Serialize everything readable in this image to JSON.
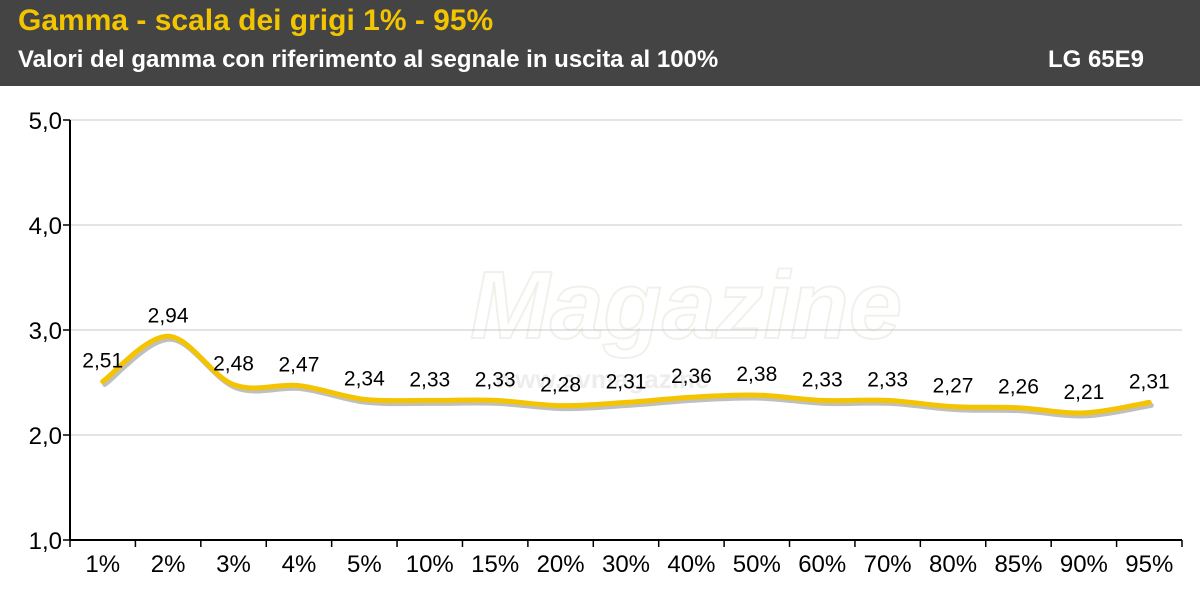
{
  "header": {
    "title": "Gamma - scala dei grigi 1% - 95%",
    "subtitle": "Valori del gamma con riferimento al segnale in uscita al 100%",
    "model": "LG 65E9"
  },
  "watermark": {
    "text": "Magazine",
    "url": "www.avmagazine"
  },
  "colors": {
    "header_bg": "#444444",
    "title": "#f2c500",
    "line": "#f5c400",
    "grid": "#c8c8c8"
  },
  "chart_data": {
    "type": "line",
    "categories": [
      "1%",
      "2%",
      "3%",
      "4%",
      "5%",
      "10%",
      "15%",
      "20%",
      "30%",
      "40%",
      "50%",
      "60%",
      "70%",
      "80%",
      "85%",
      "90%",
      "95%"
    ],
    "series": [
      {
        "values": [
          2.51,
          2.94,
          2.48,
          2.47,
          2.34,
          2.33,
          2.33,
          2.28,
          2.31,
          2.36,
          2.38,
          2.33,
          2.33,
          2.27,
          2.26,
          2.21,
          2.31
        ]
      }
    ],
    "data_labels": [
      "2,51",
      "2,94",
      "2,48",
      "2,47",
      "2,34",
      "2,33",
      "2,33",
      "2,28",
      "2,31",
      "2,36",
      "2,38",
      "2,33",
      "2,33",
      "2,27",
      "2,26",
      "2,21",
      "2,31"
    ],
    "yticks": [
      1.0,
      2.0,
      3.0,
      4.0,
      5.0
    ],
    "ytick_labels": [
      "1,0",
      "2,0",
      "3,0",
      "4,0",
      "5,0"
    ],
    "ylim": [
      1.0,
      5.0
    ],
    "grid": true,
    "smooth": true
  }
}
